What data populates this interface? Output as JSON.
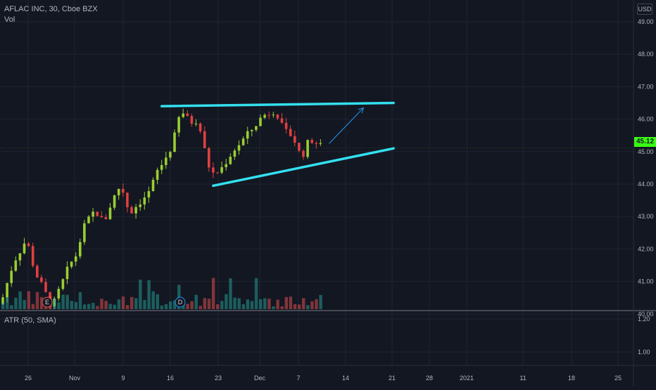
{
  "header": {
    "title": "AFLAC INC, 30, Cboe BZX",
    "volume_label": "Vol"
  },
  "currency": "USD",
  "last_price": "45.12",
  "atr_label": "ATR (50, SMA)",
  "colors": {
    "background": "#131722",
    "grid": "#1f2433",
    "up": "#26a69a",
    "down": "#ef5350",
    "candle_up": "#9acd32",
    "candle_down": "#e04040",
    "trendline": "#33e0ef",
    "arrow": "#2196f3",
    "price_tag": "#39ff14"
  },
  "markers": [
    {
      "label": "E",
      "color": "#ef5350"
    },
    {
      "label": "D",
      "color": "#2196f3"
    }
  ],
  "chart_data": {
    "type": "candlestick",
    "title": "AFLAC INC, 30, Cboe BZX",
    "price_axis_ticks": [
      "49.00",
      "48.00",
      "47.00",
      "46.00",
      "45.00",
      "44.00",
      "43.00",
      "42.00",
      "41.00",
      "40.00"
    ],
    "atr_axis_ticks": [
      "1.20",
      "1.00"
    ],
    "x_axis_ticks": [
      "26",
      "Nov",
      "9",
      "16",
      "23",
      "Dec",
      "7",
      "14",
      "21",
      "28",
      "2021",
      "11",
      "18",
      "25"
    ],
    "ylim": [
      39.8,
      49.3
    ],
    "price_path": [
      [
        0,
        40.3
      ],
      [
        3,
        41.6
      ],
      [
        6,
        42.3
      ],
      [
        8,
        41.3
      ],
      [
        12,
        40.2
      ],
      [
        16,
        41.5
      ],
      [
        18,
        41.9
      ],
      [
        19,
        42.6
      ],
      [
        22,
        43.2
      ],
      [
        24,
        42.8
      ],
      [
        26,
        43.5
      ],
      [
        28,
        44.0
      ],
      [
        30,
        43.1
      ],
      [
        32,
        43.4
      ],
      [
        35,
        43.8
      ],
      [
        36,
        44.3
      ],
      [
        38,
        44.7
      ],
      [
        40,
        45.2
      ],
      [
        42,
        46.3
      ],
      [
        44,
        45.9
      ],
      [
        46,
        46.0
      ],
      [
        47,
        45.3
      ],
      [
        49,
        44.3
      ],
      [
        51,
        44.4
      ],
      [
        54,
        45.0
      ],
      [
        58,
        45.6
      ],
      [
        61,
        46.1
      ],
      [
        64,
        46.3
      ],
      [
        66,
        45.6
      ],
      [
        68,
        45.5
      ],
      [
        70,
        44.8
      ],
      [
        72,
        45.4
      ],
      [
        75,
        45.12
      ]
    ],
    "trendlines": [
      {
        "name": "resistance",
        "from": [
          37,
          46.4
        ],
        "to": [
          91,
          46.5
        ]
      },
      {
        "name": "support",
        "from": [
          49,
          43.95
        ],
        "to": [
          91,
          45.1
        ]
      }
    ],
    "projection_arrow": {
      "from": [
        76,
        45.25
      ],
      "to": [
        84,
        46.35
      ]
    }
  }
}
